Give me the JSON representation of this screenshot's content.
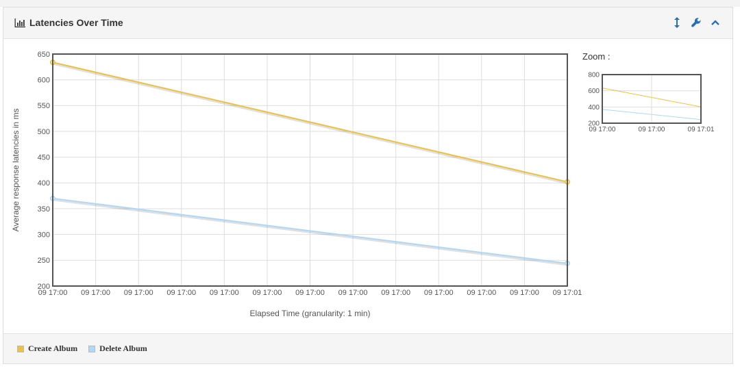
{
  "panel": {
    "title": "Latencies Over Time",
    "title_icon": "bar-chart-icon",
    "tools": [
      {
        "name": "resize-vertical-icon"
      },
      {
        "name": "wrench-icon"
      },
      {
        "name": "chevron-up-icon"
      }
    ]
  },
  "zoom_label": "Zoom :",
  "chart_data": [
    {
      "type": "line",
      "title": "",
      "xlabel": "Elapsed Time (granularity: 1 min)",
      "ylabel": "Average response latencies in ms",
      "x_tick_labels": [
        "09 17:00",
        "09 17:00",
        "09 17:00",
        "09 17:00",
        "09 17:00",
        "09 17:00",
        "09 17:00",
        "09 17:00",
        "09 17:00",
        "09 17:00",
        "09 17:00",
        "09 17:00",
        "09 17:01"
      ],
      "x": [
        0,
        1
      ],
      "ylim": [
        200,
        650
      ],
      "y_ticks": [
        200,
        250,
        300,
        350,
        400,
        450,
        500,
        550,
        600,
        650
      ],
      "grid": true,
      "legend_placement": "bottom-left",
      "series": [
        {
          "name": "Create Album",
          "color": "#edc240",
          "values": [
            634,
            402
          ]
        },
        {
          "name": "Delete Album",
          "color": "#afd8f8",
          "values": [
            370,
            244
          ]
        }
      ]
    },
    {
      "type": "line",
      "title": "",
      "x_tick_labels": [
        "09 17:00",
        "09 17:00",
        "09 17:01"
      ],
      "x": [
        0,
        1
      ],
      "ylim": [
        200,
        800
      ],
      "y_ticks": [
        200,
        400,
        600,
        800
      ],
      "grid": true,
      "series": [
        {
          "name": "Create Album",
          "color": "#edc240",
          "values": [
            634,
            402
          ]
        },
        {
          "name": "Delete Album",
          "color": "#afd8f8",
          "values": [
            370,
            244
          ]
        }
      ]
    }
  ]
}
